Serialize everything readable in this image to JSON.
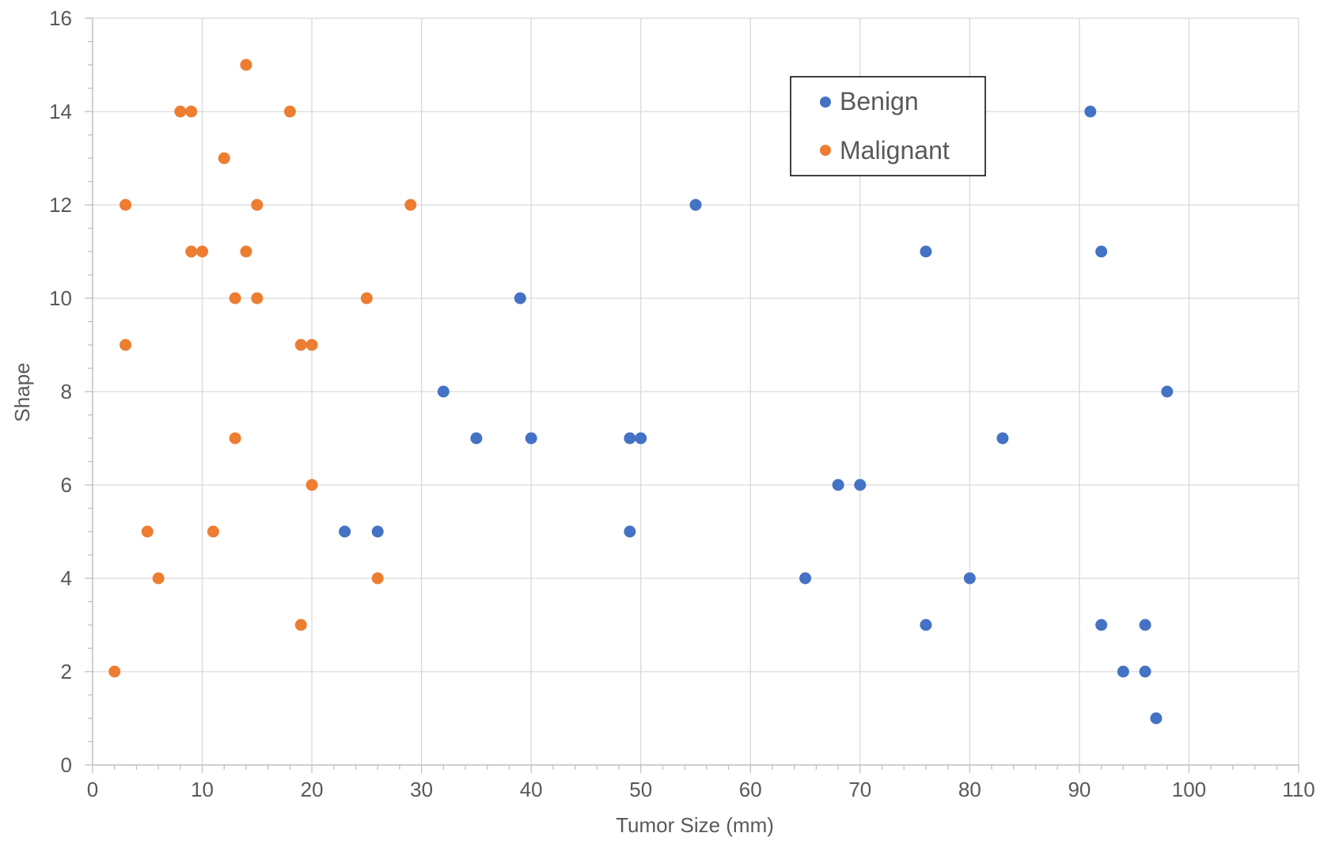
{
  "chart_data": {
    "type": "scatter",
    "title": "",
    "xlabel": "Tumor Size (mm)",
    "ylabel": "Shape",
    "xlim": [
      0,
      110
    ],
    "ylim": [
      0,
      16
    ],
    "x_major_step": 10,
    "y_major_step": 2,
    "x_minor_step": 2,
    "y_minor_step": 0.5,
    "grid": true,
    "legend_position": "top-right",
    "series": [
      {
        "name": "Benign",
        "color": "#4472C4",
        "points": [
          [
            23,
            5
          ],
          [
            26,
            5
          ],
          [
            32,
            8
          ],
          [
            35,
            7
          ],
          [
            39,
            10
          ],
          [
            40,
            7
          ],
          [
            49,
            7
          ],
          [
            49,
            5
          ],
          [
            50,
            7
          ],
          [
            55,
            12
          ],
          [
            65,
            4
          ],
          [
            68,
            6
          ],
          [
            70,
            6
          ],
          [
            76,
            11
          ],
          [
            76,
            3
          ],
          [
            80,
            4
          ],
          [
            83,
            7
          ],
          [
            91,
            14
          ],
          [
            92,
            11
          ],
          [
            92,
            3
          ],
          [
            94,
            2
          ],
          [
            96,
            3
          ],
          [
            96,
            2
          ],
          [
            97,
            1
          ],
          [
            98,
            8
          ]
        ]
      },
      {
        "name": "Malignant",
        "color": "#ED7D31",
        "points": [
          [
            2,
            2
          ],
          [
            3,
            12
          ],
          [
            3,
            9
          ],
          [
            5,
            5
          ],
          [
            6,
            4
          ],
          [
            8,
            14
          ],
          [
            9,
            14
          ],
          [
            9,
            11
          ],
          [
            10,
            11
          ],
          [
            11,
            5
          ],
          [
            12,
            13
          ],
          [
            13,
            10
          ],
          [
            13,
            7
          ],
          [
            14,
            15
          ],
          [
            14,
            11
          ],
          [
            15,
            12
          ],
          [
            15,
            10
          ],
          [
            18,
            14
          ],
          [
            19,
            9
          ],
          [
            19,
            3
          ],
          [
            20,
            9
          ],
          [
            20,
            6
          ],
          [
            25,
            10
          ],
          [
            26,
            4
          ],
          [
            29,
            12
          ]
        ]
      }
    ]
  }
}
